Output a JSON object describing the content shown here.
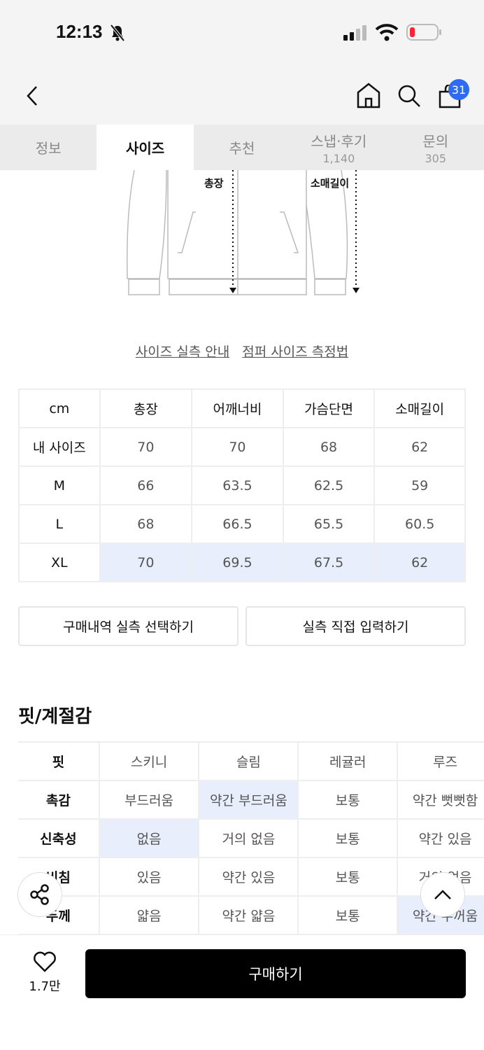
{
  "status_bar": {
    "time": "12:13"
  },
  "nav": {
    "cart_count": "31"
  },
  "tabs": [
    {
      "label": "정보",
      "count": ""
    },
    {
      "label": "사이즈",
      "count": ""
    },
    {
      "label": "추천",
      "count": ""
    },
    {
      "label": "스냅·후기",
      "count": "1,140"
    },
    {
      "label": "문의",
      "count": "305"
    }
  ],
  "illustration": {
    "label_length": "총장",
    "label_sleeve": "소매길이"
  },
  "links": {
    "guide": "사이즈 실측 안내",
    "method": "점퍼 사이즈 측정법"
  },
  "size_table": {
    "headers": [
      "cm",
      "총장",
      "어깨너비",
      "가슴단면",
      "소매길이"
    ],
    "rows": [
      [
        "내 사이즈",
        "70",
        "70",
        "68",
        "62"
      ],
      [
        "M",
        "66",
        "63.5",
        "62.5",
        "59"
      ],
      [
        "L",
        "68",
        "66.5",
        "65.5",
        "60.5"
      ],
      [
        "XL",
        "70",
        "69.5",
        "67.5",
        "62"
      ]
    ],
    "highlight_row": "XL"
  },
  "buttons": {
    "purchase_history": "구매내역 실측 선택하기",
    "manual_input": "실측 직접 입력하기"
  },
  "fit_section": {
    "title": "핏/계절감",
    "rows": [
      {
        "label": "핏",
        "options": [
          "스키니",
          "슬림",
          "레귤러",
          "루즈"
        ],
        "selected": -1
      },
      {
        "label": "촉감",
        "options": [
          "부드러움",
          "약간 부드러움",
          "보통",
          "약간 뻣뻣함"
        ],
        "selected": 1
      },
      {
        "label": "신축성",
        "options": [
          "없음",
          "거의 없음",
          "보통",
          "약간 있음"
        ],
        "selected": 0
      },
      {
        "label": "비침",
        "options": [
          "있음",
          "약간 있음",
          "보통",
          "거의 없음"
        ],
        "selected": -1
      },
      {
        "label": "두께",
        "options": [
          "얇음",
          "약간 얇음",
          "보통",
          "약간 두꺼움"
        ],
        "selected": 3
      }
    ]
  },
  "bottom_bar": {
    "like_count": "1.7만",
    "buy_label": "구매하기"
  },
  "colors": {
    "highlight": "#e8eefc",
    "badge": "#2f6bf0",
    "buy": "#000000"
  }
}
